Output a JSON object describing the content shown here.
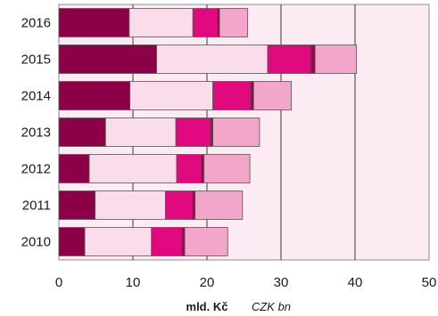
{
  "chart_data": {
    "type": "bar",
    "orientation": "horizontal",
    "stacked": true,
    "categories": [
      "2016",
      "2015",
      "2014",
      "2013",
      "2012",
      "2011",
      "2010"
    ],
    "series": [
      {
        "color": "#8b0046",
        "values": [
          9.5,
          13.2,
          9.6,
          6.3,
          4.1,
          4.9,
          3.5
        ]
      },
      {
        "color": "#fadcea",
        "values": [
          8.6,
          15.0,
          11.2,
          9.5,
          11.8,
          9.5,
          9.0
        ]
      },
      {
        "color": "#e0097e",
        "values": [
          3.3,
          5.8,
          5.1,
          4.7,
          3.3,
          3.6,
          4.1
        ]
      },
      {
        "color": "#a40056",
        "values": [
          0.3,
          0.6,
          0.4,
          0.3,
          0.4,
          0.4,
          0.4
        ]
      },
      {
        "color": "#f2a6c9",
        "values": [
          3.8,
          5.6,
          5.1,
          6.3,
          6.2,
          6.4,
          5.8
        ]
      }
    ],
    "xlim": [
      0,
      50
    ],
    "xticks": [
      0,
      10,
      20,
      30,
      40,
      50
    ],
    "xlabel": "mld. Kč",
    "xlabel_secondary": "CZK bn",
    "grid": "vertical",
    "plot_background": "#fdebf3"
  }
}
